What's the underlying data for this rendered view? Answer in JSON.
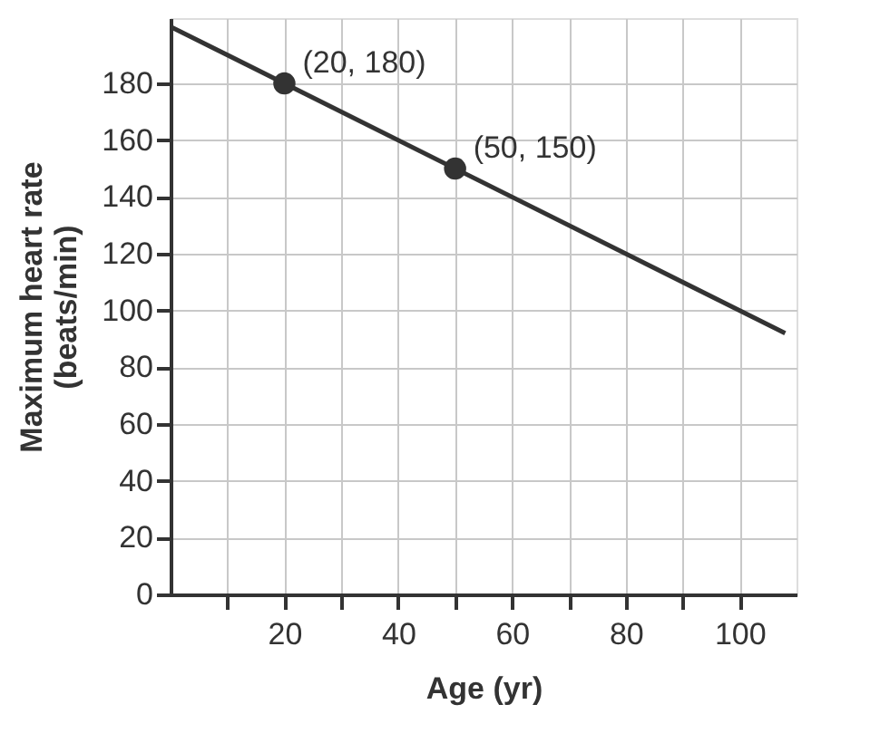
{
  "chart_data": {
    "type": "line",
    "xlabel": "Age (yr)",
    "ylabel": "Maximum heart rate\n(beats/min)",
    "series": [
      {
        "x": [
          0,
          108
        ],
        "values": [
          200,
          92
        ],
        "color": "#333333",
        "marker": "none",
        "line_style": "solid"
      },
      {
        "type": "scatter",
        "x": [
          20,
          50
        ],
        "values": [
          180,
          150
        ],
        "color": "#333333",
        "marker": "circle"
      }
    ],
    "annotations": [
      {
        "text": "(20, 180)",
        "x": 20,
        "y": 180
      },
      {
        "text": "(50, 150)",
        "x": 50,
        "y": 150
      }
    ],
    "xlim": [
      0,
      110
    ],
    "ylim": [
      0,
      203
    ],
    "xticks": [
      {
        "value": 10,
        "label": null
      },
      20,
      {
        "value": 30,
        "label": null
      },
      40,
      {
        "value": 50,
        "label": null
      },
      60,
      {
        "value": 70,
        "label": null
      },
      80,
      {
        "value": 90,
        "label": null
      },
      100
    ],
    "yticks": [
      0,
      20,
      40,
      60,
      80,
      100,
      120,
      140,
      160,
      180
    ],
    "grid": true
  }
}
